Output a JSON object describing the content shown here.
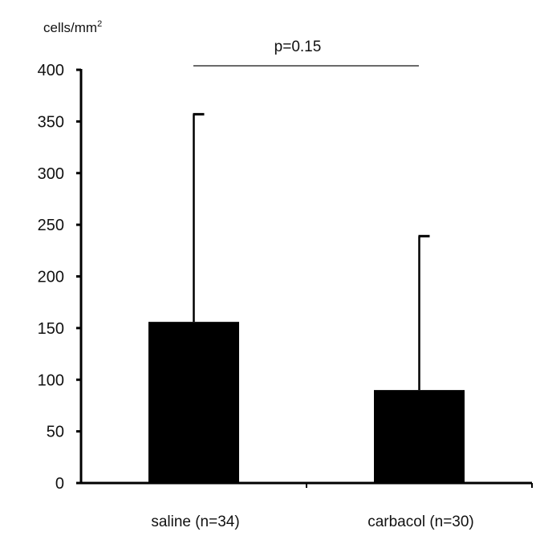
{
  "chart_data": {
    "type": "bar",
    "title": "",
    "ylabel": "cells/mm",
    "ylabel_superscript": "2",
    "xlabel": "",
    "categories": [
      "saline (n=34)",
      "carbacol (n=30)"
    ],
    "values": [
      156,
      90
    ],
    "error_upper": [
      357,
      239
    ],
    "ylim": [
      0,
      400
    ],
    "yticks": [
      0,
      50,
      100,
      150,
      200,
      250,
      300,
      350,
      400
    ],
    "annotation": "p=0.15",
    "bar_color": "#000000",
    "grid": false
  }
}
